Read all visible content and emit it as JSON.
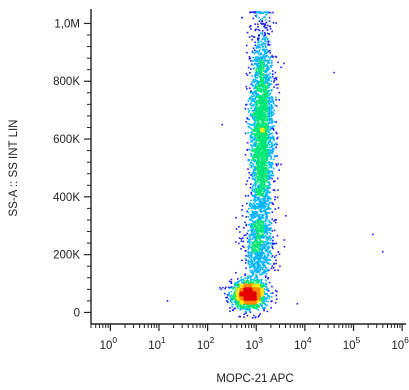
{
  "chart_data": {
    "type": "scatter",
    "title": "",
    "xlabel": "MOPC-21  APC",
    "ylabel": "SS-A :: SS INT LIN",
    "xscale": "log",
    "xlim": [
      0.4,
      1200000
    ],
    "ylim": [
      -40000,
      1050000
    ],
    "grid": false,
    "legend": "none",
    "x_ticks": [
      {
        "value": 1,
        "base": "10",
        "exp": "0"
      },
      {
        "value": 10,
        "base": "10",
        "exp": "1"
      },
      {
        "value": 100,
        "base": "10",
        "exp": "2"
      },
      {
        "value": 1000,
        "base": "10",
        "exp": "3"
      },
      {
        "value": 10000,
        "base": "10",
        "exp": "4"
      },
      {
        "value": 100000,
        "base": "10",
        "exp": "5"
      },
      {
        "value": 1000000,
        "base": "10",
        "exp": "6"
      }
    ],
    "y_ticks": [
      {
        "value": 0,
        "label": "0"
      },
      {
        "value": 200000,
        "label": "200K"
      },
      {
        "value": 400000,
        "label": "400K"
      },
      {
        "value": 600000,
        "label": "600K"
      },
      {
        "value": 800000,
        "label": "800K"
      },
      {
        "value": 1000000,
        "label": "1,0M"
      }
    ],
    "populations": [
      {
        "name_hint": "low-side-scatter cluster",
        "x_center": 700,
        "y_center": 60000,
        "log_x_sd": 0.17,
        "y_sd": 22000,
        "weight": 0.3
      },
      {
        "name_hint": "high-side-scatter column",
        "x_center": 1300,
        "y_center": 620000,
        "log_x_sd": 0.12,
        "y_sd": 190000,
        "weight": 0.55
      },
      {
        "name_hint": "bridge",
        "x_center": 1100,
        "y_center": 220000,
        "log_x_sd": 0.15,
        "y_sd": 90000,
        "weight": 0.15
      }
    ],
    "outliers": [
      {
        "x": 250000,
        "y": 270000
      },
      {
        "x": 400000,
        "y": 210000
      },
      {
        "x": 40000,
        "y": 830000
      },
      {
        "x": 15,
        "y": 40000
      },
      {
        "x": 200,
        "y": 650000
      },
      {
        "x": 7000,
        "y": 30000
      }
    ],
    "density_colors": [
      "#1a1aff",
      "#00b4ff",
      "#00e676",
      "#ffea00",
      "#ff8c00",
      "#e60000"
    ]
  }
}
